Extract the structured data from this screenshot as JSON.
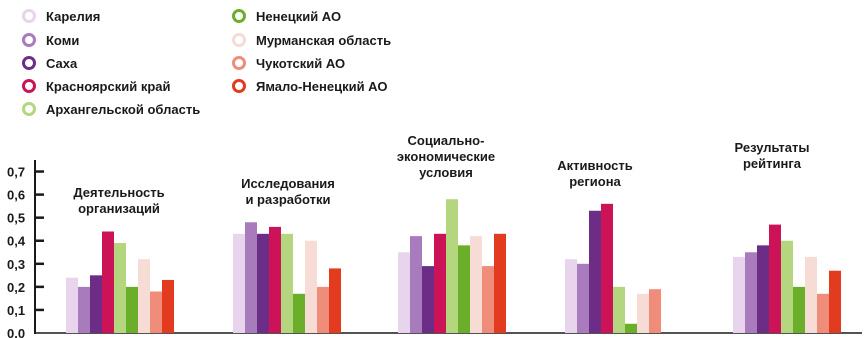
{
  "chart_data": {
    "type": "bar",
    "categories": [
      [
        "Деятельность",
        "организаций"
      ],
      [
        "Исследования",
        "и разработки"
      ],
      [
        "Социально-",
        "экономические",
        "условия"
      ],
      [
        "Активность",
        "региона"
      ],
      [
        "Результаты",
        "рейтинга"
      ]
    ],
    "series": [
      {
        "name": "Карелия",
        "color": "#e8d4ec",
        "values": [
          0.24,
          0.43,
          0.35,
          0.32,
          0.33
        ]
      },
      {
        "name": "Коми",
        "color": "#a87bbd",
        "values": [
          0.2,
          0.48,
          0.42,
          0.3,
          0.35
        ]
      },
      {
        "name": "Саха",
        "color": "#6b2d86",
        "values": [
          0.25,
          0.43,
          0.29,
          0.53,
          0.38
        ]
      },
      {
        "name": "Красноярский край",
        "color": "#cc1358",
        "values": [
          0.44,
          0.46,
          0.43,
          0.56,
          0.47
        ]
      },
      {
        "name": "Архангельской область",
        "color": "#b4d67e",
        "values": [
          0.39,
          0.43,
          0.58,
          0.2,
          0.4
        ]
      },
      {
        "name": "Ненецкий АО",
        "color": "#6aae2a",
        "values": [
          0.2,
          0.17,
          0.38,
          0.04,
          0.2
        ]
      },
      {
        "name": "Мурманская область",
        "color": "#f7dcd6",
        "values": [
          0.32,
          0.4,
          0.42,
          0.17,
          0.33
        ]
      },
      {
        "name": "Чукотский АО",
        "color": "#ef8d7a",
        "values": [
          0.18,
          0.2,
          0.29,
          0.19,
          0.17
        ]
      },
      {
        "name": "Ямало-Ненецкий АО",
        "color": "#e23b1f",
        "values": [
          0.23,
          0.28,
          0.43,
          null,
          0.27
        ]
      }
    ],
    "yticks": [
      "0.0",
      "0,1",
      "0,2",
      "0,3",
      "0,4",
      "0,5",
      "0,6",
      "0,7"
    ],
    "ylim": [
      0,
      0.75
    ],
    "grid": false,
    "legend_position": "top-left"
  }
}
